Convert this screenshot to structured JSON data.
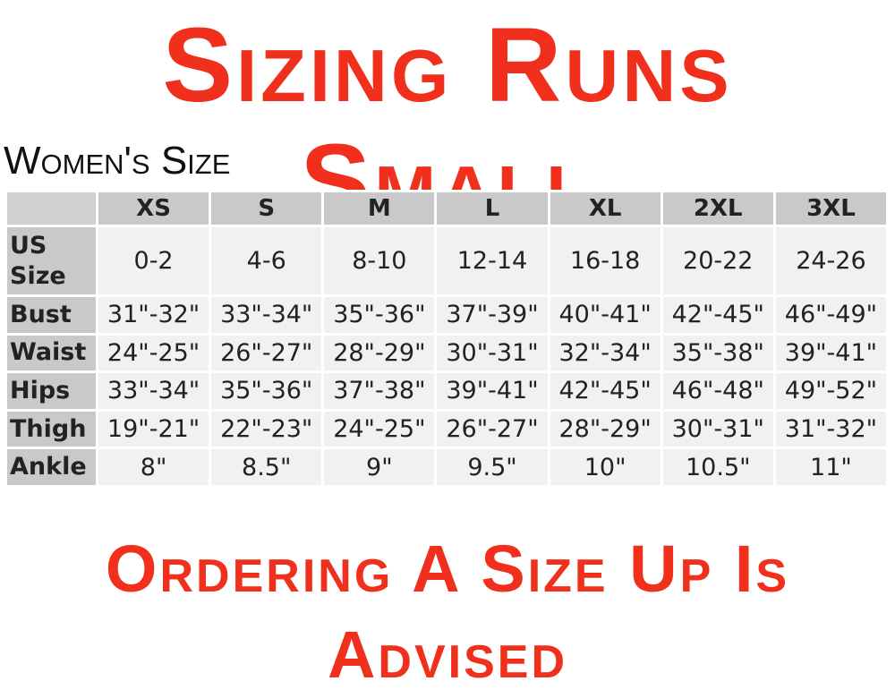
{
  "header": {
    "title": "Sizing Runs Small",
    "subtitle": "Women's Size"
  },
  "table": {
    "columns": [
      "XS",
      "S",
      "M",
      "L",
      "XL",
      "2XL",
      "3XL"
    ],
    "rows": [
      [
        "US Size",
        "0-2",
        "4-6",
        "8-10",
        "12-14",
        "16-18",
        "20-22",
        "24-26"
      ],
      [
        "Bust",
        "31\"-32\"",
        "33\"-34\"",
        "35\"-36\"",
        "37\"-39\"",
        "40\"-41\"",
        "42\"-45\"",
        "46\"-49\""
      ],
      [
        "Waist",
        "24\"-25\"",
        "26\"-27\"",
        "28\"-29\"",
        "30\"-31\"",
        "32\"-34\"",
        "35\"-38\"",
        "39\"-41\""
      ],
      [
        "Hips",
        "33\"-34\"",
        "35\"-36\"",
        "37\"-38\"",
        "39\"-41\"",
        "42\"-45\"",
        "46\"-48\"",
        "49\"-52\""
      ],
      [
        "Thigh",
        "19\"-21\"",
        "22\"-23\"",
        "24\"-25\"",
        "26\"-27\"",
        "28\"-29\"",
        "30\"-31\"",
        "31\"-32\""
      ],
      [
        "Ankle",
        "8\"",
        "8.5\"",
        "9\"",
        "9.5\"",
        "10\"",
        "10.5\"",
        "11\""
      ]
    ]
  },
  "footer": {
    "note": "Ordering A Size Up Is Advised"
  }
}
